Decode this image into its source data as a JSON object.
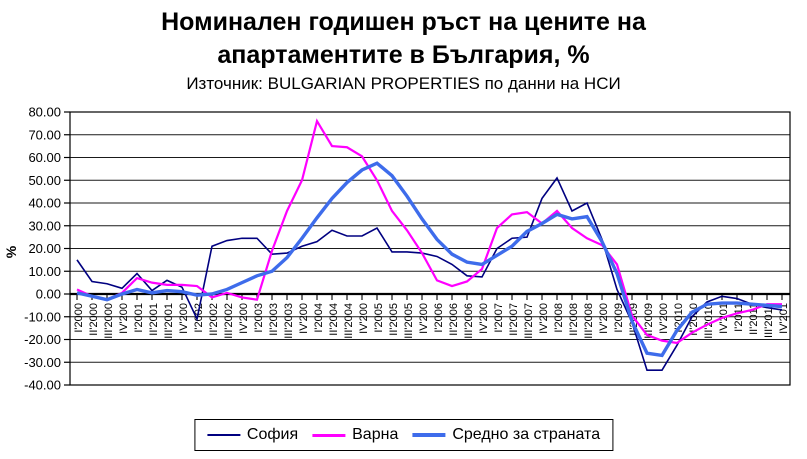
{
  "title": {
    "line1": "Номинален годишен ръст на цените на",
    "line2": "апартаментите в България, %",
    "subtitle": "Източник: BULGARIAN PROPERTIES по данни на НСИ"
  },
  "y_axis": {
    "title": "%",
    "tick_labels": [
      "80.00",
      "70.00",
      "60.00",
      "50.00",
      "40.00",
      "30.00",
      "20.00",
      "10.00",
      "0.00",
      "-10.00",
      "-20.00",
      "-30.00",
      "-40.00"
    ]
  },
  "chart_data": {
    "type": "line",
    "title": "Номинален годишен ръст на цените на апартаментите в България, %",
    "subtitle": "Източник: BULGARIAN PROPERTIES по данни на НСИ",
    "ylabel": "%",
    "ylim": [
      -40,
      80
    ],
    "ytick_step": 10,
    "grid": true,
    "legend_position": "bottom",
    "categories": [
      "I'2000",
      "II'2000",
      "III'2000",
      "IV'200",
      "I'2001",
      "II'2001",
      "III'2001",
      "IV'200",
      "I'2002",
      "II'2002",
      "III'2002",
      "IV'200",
      "I'2003",
      "II'2003",
      "III'2003",
      "IV'200",
      "I'2004",
      "II'2004",
      "III'2004",
      "IV'200",
      "I'2005",
      "II'2005",
      "III'2005",
      "IV'200",
      "I'2006",
      "II'2006",
      "III'2006",
      "IV'200",
      "I'2007",
      "II'2007",
      "III'2007",
      "IV'200",
      "I'2008",
      "II'2008",
      "III'2008",
      "IV'200",
      "I'2009",
      "II'2009",
      "III'2009",
      "IV'200",
      "I'2010",
      "II'2010",
      "III'2010",
      "IV'201",
      "I'2011",
      "II'2011",
      "III'2011",
      "IV'201"
    ],
    "series": [
      {
        "name": "София",
        "color": "#000080",
        "width": 1.6,
        "values": [
          15,
          5.5,
          4.5,
          2.5,
          9,
          1.5,
          6,
          3,
          -11,
          21,
          23.5,
          24.5,
          24.5,
          17.5,
          18,
          21,
          23,
          28,
          25.5,
          25.5,
          29,
          18.5,
          18.5,
          18,
          16.5,
          13,
          8,
          7.5,
          20,
          24.5,
          25,
          42,
          51,
          36.5,
          40,
          24,
          2,
          -12.5,
          -33.5,
          -33.5,
          -22.5,
          -10,
          -3.5,
          -1,
          -2,
          -4.5,
          -6,
          -7
        ]
      },
      {
        "name": "Варна",
        "color": "#FF00FF",
        "width": 2.2,
        "values": [
          2,
          -1,
          -2.5,
          0.5,
          7,
          5,
          4,
          4,
          3.5,
          -1.5,
          0.5,
          -1.5,
          -2.5,
          19,
          36.5,
          50,
          76,
          65,
          64.5,
          60.5,
          50,
          36.5,
          28,
          18,
          6,
          3.5,
          5.5,
          11,
          29,
          35,
          36,
          31,
          36.5,
          29,
          24.5,
          21.5,
          13,
          -9.5,
          -18,
          -20.5,
          -21.5,
          -17,
          -13.5,
          -10.5,
          -8.5,
          -7,
          -4.5,
          -4.5
        ]
      },
      {
        "name": "Средно за страната",
        "color": "#3E6CEB",
        "width": 3.4,
        "values": [
          0.5,
          -1,
          -2.5,
          0,
          2,
          0.5,
          1.5,
          1,
          -0.5,
          0,
          2,
          5,
          8,
          10,
          16,
          24.5,
          33.5,
          42,
          49,
          54.5,
          57.5,
          52,
          43,
          33,
          24,
          17.5,
          14,
          13,
          17,
          21,
          27.5,
          31,
          35,
          33,
          34,
          23,
          9,
          -12,
          -26,
          -27,
          -16,
          -8,
          -4.5,
          -4,
          -4,
          -4.5,
          -5,
          -5.5
        ]
      }
    ]
  }
}
